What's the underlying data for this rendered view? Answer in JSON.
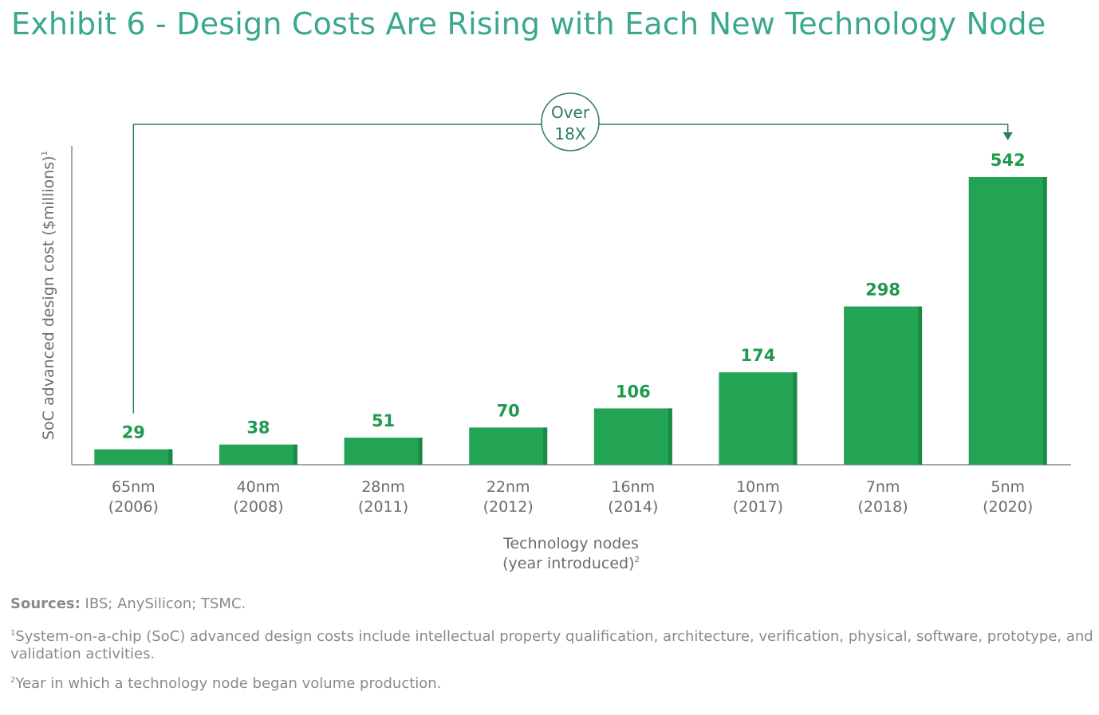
{
  "title": "Exhibit 6 - Design Costs Are Rising with Each New Technology Node",
  "colors": {
    "bar": "#23a455",
    "bar_shade": "#1a8a45",
    "label": "#1f9a4d",
    "title": "#3aa88f",
    "annotation": "#2e7d5b",
    "axis": "#8a8a8a",
    "text": "#6b6b6b"
  },
  "chart_data": {
    "type": "bar",
    "categories": [
      "65nm",
      "40nm",
      "28nm",
      "22nm",
      "16nm",
      "10nm",
      "7nm",
      "5nm"
    ],
    "years": [
      "(2006)",
      "(2008)",
      "(2011)",
      "(2012)",
      "(2014)",
      "(2017)",
      "(2018)",
      "(2020)"
    ],
    "values": [
      29,
      38,
      51,
      70,
      106,
      174,
      298,
      542
    ],
    "ylabel": "SoC advanced design cost ($millions)",
    "ylabel_sup": "1",
    "xlabel_line1": "Technology nodes",
    "xlabel_line2": "(year introduced)",
    "xlabel_sup": "2",
    "annotation": {
      "line1": "Over",
      "line2": "18X",
      "from_category": "65nm",
      "to_category": "5nm"
    },
    "ylim": [
      0,
      542
    ]
  },
  "footer": {
    "sources_label": "Sources:",
    "sources_text": " IBS; AnySilicon; TSMC.",
    "note1_marker": "1",
    "note1": "System-on-a-chip (SoC) advanced design costs include intellectual property qualification, architecture, verification, physical, software, prototype, and validation activities.",
    "note2_marker": "2",
    "note2": "Year in which a technology node began volume production."
  }
}
